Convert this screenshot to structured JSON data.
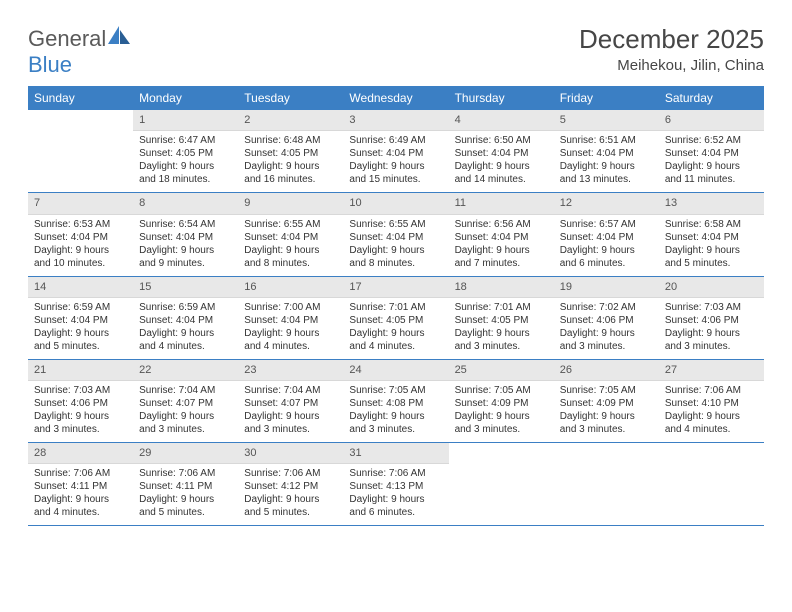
{
  "logo": {
    "text1": "General",
    "text2": "Blue"
  },
  "title": "December 2025",
  "location": "Meihekou, Jilin, China",
  "colors": {
    "header_bg": "#3b7fc4",
    "header_text": "#ffffff",
    "daynum_bg": "#e8e8e8",
    "daynum_text": "#555555",
    "body_text": "#333333",
    "title_text": "#464646",
    "logo_gray": "#5a5a5a",
    "logo_blue": "#3b7fc4",
    "row_border": "#3b7fc4"
  },
  "typography": {
    "title_fontsize": 26,
    "location_fontsize": 15,
    "weekday_fontsize": 12,
    "daynum_fontsize": 11,
    "body_fontsize": 10
  },
  "weekdays": [
    "Sunday",
    "Monday",
    "Tuesday",
    "Wednesday",
    "Thursday",
    "Friday",
    "Saturday"
  ],
  "weeks": [
    [
      {
        "n": "",
        "sr": "",
        "ss": "",
        "dl1": "",
        "dl2": ""
      },
      {
        "n": "1",
        "sr": "Sunrise: 6:47 AM",
        "ss": "Sunset: 4:05 PM",
        "dl1": "Daylight: 9 hours",
        "dl2": "and 18 minutes."
      },
      {
        "n": "2",
        "sr": "Sunrise: 6:48 AM",
        "ss": "Sunset: 4:05 PM",
        "dl1": "Daylight: 9 hours",
        "dl2": "and 16 minutes."
      },
      {
        "n": "3",
        "sr": "Sunrise: 6:49 AM",
        "ss": "Sunset: 4:04 PM",
        "dl1": "Daylight: 9 hours",
        "dl2": "and 15 minutes."
      },
      {
        "n": "4",
        "sr": "Sunrise: 6:50 AM",
        "ss": "Sunset: 4:04 PM",
        "dl1": "Daylight: 9 hours",
        "dl2": "and 14 minutes."
      },
      {
        "n": "5",
        "sr": "Sunrise: 6:51 AM",
        "ss": "Sunset: 4:04 PM",
        "dl1": "Daylight: 9 hours",
        "dl2": "and 13 minutes."
      },
      {
        "n": "6",
        "sr": "Sunrise: 6:52 AM",
        "ss": "Sunset: 4:04 PM",
        "dl1": "Daylight: 9 hours",
        "dl2": "and 11 minutes."
      }
    ],
    [
      {
        "n": "7",
        "sr": "Sunrise: 6:53 AM",
        "ss": "Sunset: 4:04 PM",
        "dl1": "Daylight: 9 hours",
        "dl2": "and 10 minutes."
      },
      {
        "n": "8",
        "sr": "Sunrise: 6:54 AM",
        "ss": "Sunset: 4:04 PM",
        "dl1": "Daylight: 9 hours",
        "dl2": "and 9 minutes."
      },
      {
        "n": "9",
        "sr": "Sunrise: 6:55 AM",
        "ss": "Sunset: 4:04 PM",
        "dl1": "Daylight: 9 hours",
        "dl2": "and 8 minutes."
      },
      {
        "n": "10",
        "sr": "Sunrise: 6:55 AM",
        "ss": "Sunset: 4:04 PM",
        "dl1": "Daylight: 9 hours",
        "dl2": "and 8 minutes."
      },
      {
        "n": "11",
        "sr": "Sunrise: 6:56 AM",
        "ss": "Sunset: 4:04 PM",
        "dl1": "Daylight: 9 hours",
        "dl2": "and 7 minutes."
      },
      {
        "n": "12",
        "sr": "Sunrise: 6:57 AM",
        "ss": "Sunset: 4:04 PM",
        "dl1": "Daylight: 9 hours",
        "dl2": "and 6 minutes."
      },
      {
        "n": "13",
        "sr": "Sunrise: 6:58 AM",
        "ss": "Sunset: 4:04 PM",
        "dl1": "Daylight: 9 hours",
        "dl2": "and 5 minutes."
      }
    ],
    [
      {
        "n": "14",
        "sr": "Sunrise: 6:59 AM",
        "ss": "Sunset: 4:04 PM",
        "dl1": "Daylight: 9 hours",
        "dl2": "and 5 minutes."
      },
      {
        "n": "15",
        "sr": "Sunrise: 6:59 AM",
        "ss": "Sunset: 4:04 PM",
        "dl1": "Daylight: 9 hours",
        "dl2": "and 4 minutes."
      },
      {
        "n": "16",
        "sr": "Sunrise: 7:00 AM",
        "ss": "Sunset: 4:04 PM",
        "dl1": "Daylight: 9 hours",
        "dl2": "and 4 minutes."
      },
      {
        "n": "17",
        "sr": "Sunrise: 7:01 AM",
        "ss": "Sunset: 4:05 PM",
        "dl1": "Daylight: 9 hours",
        "dl2": "and 4 minutes."
      },
      {
        "n": "18",
        "sr": "Sunrise: 7:01 AM",
        "ss": "Sunset: 4:05 PM",
        "dl1": "Daylight: 9 hours",
        "dl2": "and 3 minutes."
      },
      {
        "n": "19",
        "sr": "Sunrise: 7:02 AM",
        "ss": "Sunset: 4:06 PM",
        "dl1": "Daylight: 9 hours",
        "dl2": "and 3 minutes."
      },
      {
        "n": "20",
        "sr": "Sunrise: 7:03 AM",
        "ss": "Sunset: 4:06 PM",
        "dl1": "Daylight: 9 hours",
        "dl2": "and 3 minutes."
      }
    ],
    [
      {
        "n": "21",
        "sr": "Sunrise: 7:03 AM",
        "ss": "Sunset: 4:06 PM",
        "dl1": "Daylight: 9 hours",
        "dl2": "and 3 minutes."
      },
      {
        "n": "22",
        "sr": "Sunrise: 7:04 AM",
        "ss": "Sunset: 4:07 PM",
        "dl1": "Daylight: 9 hours",
        "dl2": "and 3 minutes."
      },
      {
        "n": "23",
        "sr": "Sunrise: 7:04 AM",
        "ss": "Sunset: 4:07 PM",
        "dl1": "Daylight: 9 hours",
        "dl2": "and 3 minutes."
      },
      {
        "n": "24",
        "sr": "Sunrise: 7:05 AM",
        "ss": "Sunset: 4:08 PM",
        "dl1": "Daylight: 9 hours",
        "dl2": "and 3 minutes."
      },
      {
        "n": "25",
        "sr": "Sunrise: 7:05 AM",
        "ss": "Sunset: 4:09 PM",
        "dl1": "Daylight: 9 hours",
        "dl2": "and 3 minutes."
      },
      {
        "n": "26",
        "sr": "Sunrise: 7:05 AM",
        "ss": "Sunset: 4:09 PM",
        "dl1": "Daylight: 9 hours",
        "dl2": "and 3 minutes."
      },
      {
        "n": "27",
        "sr": "Sunrise: 7:06 AM",
        "ss": "Sunset: 4:10 PM",
        "dl1": "Daylight: 9 hours",
        "dl2": "and 4 minutes."
      }
    ],
    [
      {
        "n": "28",
        "sr": "Sunrise: 7:06 AM",
        "ss": "Sunset: 4:11 PM",
        "dl1": "Daylight: 9 hours",
        "dl2": "and 4 minutes."
      },
      {
        "n": "29",
        "sr": "Sunrise: 7:06 AM",
        "ss": "Sunset: 4:11 PM",
        "dl1": "Daylight: 9 hours",
        "dl2": "and 5 minutes."
      },
      {
        "n": "30",
        "sr": "Sunrise: 7:06 AM",
        "ss": "Sunset: 4:12 PM",
        "dl1": "Daylight: 9 hours",
        "dl2": "and 5 minutes."
      },
      {
        "n": "31",
        "sr": "Sunrise: 7:06 AM",
        "ss": "Sunset: 4:13 PM",
        "dl1": "Daylight: 9 hours",
        "dl2": "and 6 minutes."
      },
      {
        "n": "",
        "sr": "",
        "ss": "",
        "dl1": "",
        "dl2": ""
      },
      {
        "n": "",
        "sr": "",
        "ss": "",
        "dl1": "",
        "dl2": ""
      },
      {
        "n": "",
        "sr": "",
        "ss": "",
        "dl1": "",
        "dl2": ""
      }
    ]
  ]
}
